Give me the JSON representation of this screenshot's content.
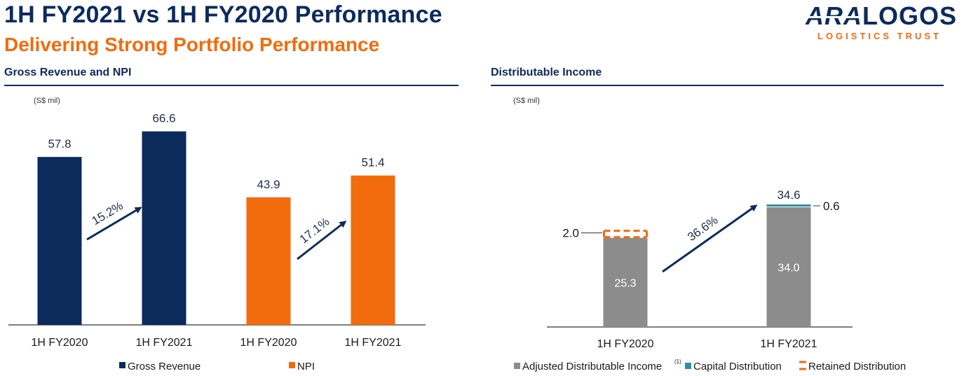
{
  "header": {
    "title": "1H FY2021 vs 1H FY2020 Performance",
    "subtitle": "Delivering Strong Portfolio Performance"
  },
  "logo": {
    "brand_ara": "ARA",
    "brand_logos": "LOGOS",
    "tagline": "LOGISTICS TRUST"
  },
  "colors": {
    "navy": "#0c2b5d",
    "orange": "#f26b0c",
    "grey": "#8c8c8c",
    "teal": "#2e8fa6"
  },
  "chart_data": [
    {
      "type": "bar",
      "title": "Gross Revenue and NPI",
      "ylabel": "(S$ mil)",
      "categories": [
        "1H FY2020",
        "1H FY2021",
        "1H FY2020",
        "1H FY2021"
      ],
      "ylim": [
        0,
        80
      ],
      "series": [
        {
          "name": "Gross Revenue",
          "color": "#0c2b5d",
          "values": [
            57.8,
            66.6,
            null,
            null
          ]
        },
        {
          "name": "NPI",
          "color": "#f26b0c",
          "values": [
            null,
            null,
            43.9,
            51.4
          ]
        }
      ],
      "data_labels": [
        "57.8",
        "66.6",
        "43.9",
        "51.4"
      ],
      "annotations": [
        {
          "text": "15.2%",
          "from_category": 0,
          "to_category": 1
        },
        {
          "text": "17.1%",
          "from_category": 2,
          "to_category": 3
        }
      ],
      "legend": [
        "Gross Revenue",
        "NPI"
      ]
    },
    {
      "type": "bar",
      "stacked": true,
      "title": "Distributable Income",
      "ylabel": "(S$ mil)",
      "categories": [
        "1H FY2020",
        "1H FY2021"
      ],
      "ylim": [
        0,
        40
      ],
      "series": [
        {
          "name": "Adjusted Distributable Income",
          "color": "#8c8c8c",
          "values": [
            25.3,
            34.0
          ]
        },
        {
          "name": "Capital Distribution",
          "color": "#2e8fa6",
          "values": [
            0,
            0.6
          ]
        },
        {
          "name": "Retained Distribution",
          "color": "#f26b0c",
          "values": [
            2.0,
            0
          ]
        }
      ],
      "totals": [
        null,
        34.6
      ],
      "data_labels": {
        "adjusted": [
          "25.3",
          "34.0"
        ],
        "retained_fy2020": "2.0",
        "capital_fy2021": "0.6",
        "total_fy2021": "34.6"
      },
      "annotations": [
        {
          "text": "36.6%",
          "from_category": 0,
          "to_category": 1
        }
      ],
      "legend": [
        "Adjusted Distributable Income",
        "(1)",
        "Capital Distribution",
        "Retained Distribution"
      ]
    }
  ]
}
